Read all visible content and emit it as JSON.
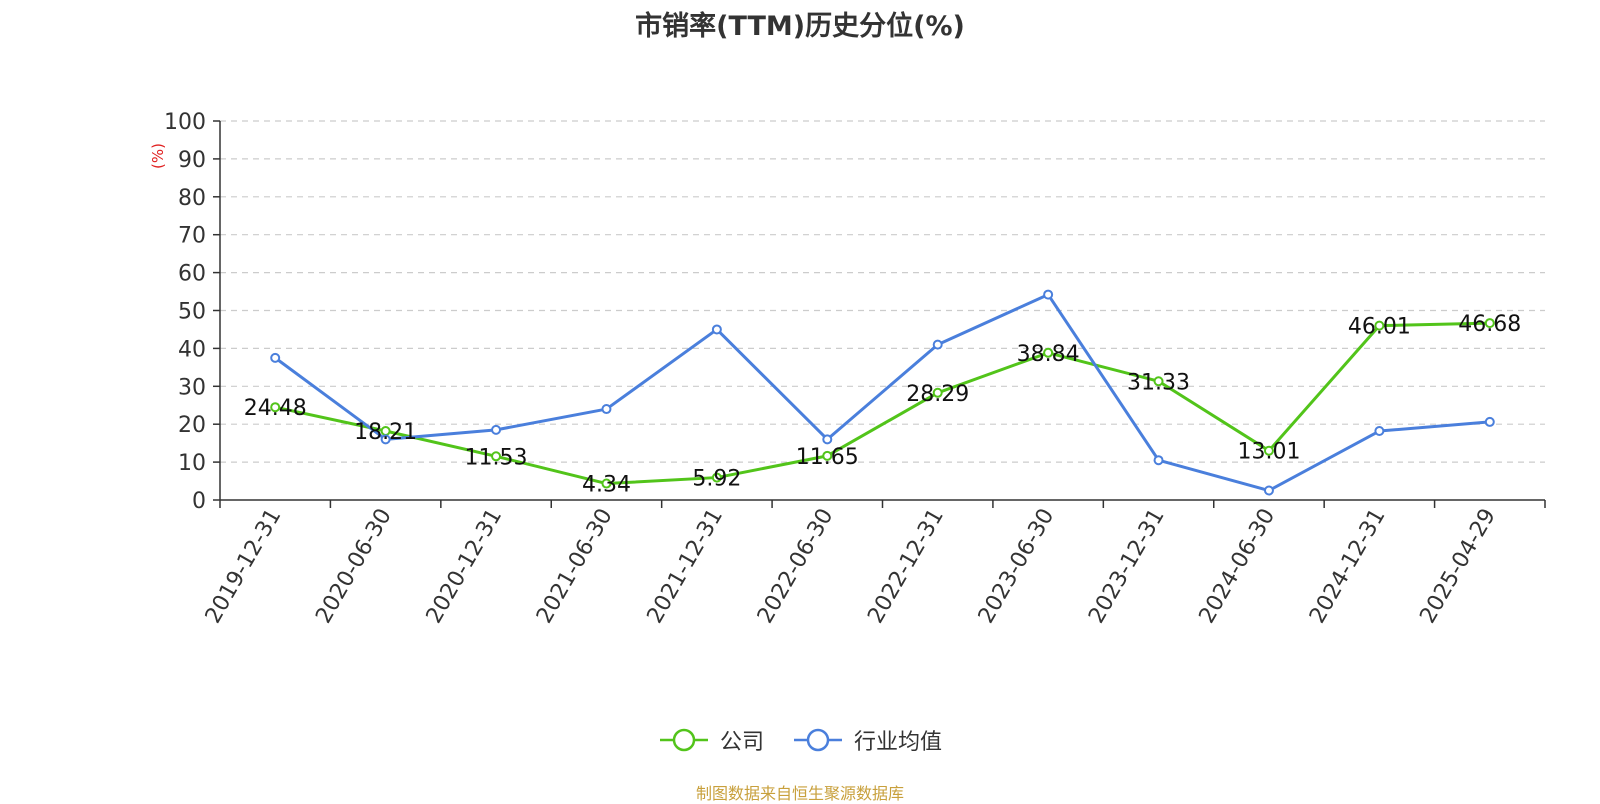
{
  "chart_data": {
    "type": "line",
    "title": "市销率(TTM)历史分位(%)",
    "ylabel": "(%)",
    "ylim": [
      0,
      100
    ],
    "yticks": [
      0,
      10,
      20,
      30,
      40,
      50,
      60,
      70,
      80,
      90,
      100
    ],
    "categories": [
      "2019-12-31",
      "2020-06-30",
      "2020-12-31",
      "2021-06-30",
      "2021-12-31",
      "2022-06-30",
      "2022-12-31",
      "2023-06-30",
      "2023-12-31",
      "2024-06-30",
      "2024-12-31",
      "2025-04-29"
    ],
    "series": [
      {
        "name": "公司",
        "color": "#52c41a",
        "values": [
          24.48,
          18.21,
          11.53,
          4.34,
          5.92,
          11.65,
          28.29,
          38.84,
          31.33,
          13.01,
          46.01,
          46.68
        ],
        "labels": [
          "24.48",
          "18.21",
          "11.53",
          "4.34",
          "5.92",
          "11.65",
          "28.29",
          "38.84",
          "31.33",
          "13.01",
          "46.01",
          "46.68"
        ]
      },
      {
        "name": "行业均值",
        "color": "#4a7fdc",
        "values": [
          37.5,
          16.0,
          18.5,
          24.0,
          45.0,
          16.0,
          41.0,
          54.2,
          10.5,
          2.5,
          18.2,
          20.6
        ]
      }
    ],
    "grid": true,
    "legend": "bottom-center",
    "source": "制图数据来自恒生聚源数据库"
  }
}
